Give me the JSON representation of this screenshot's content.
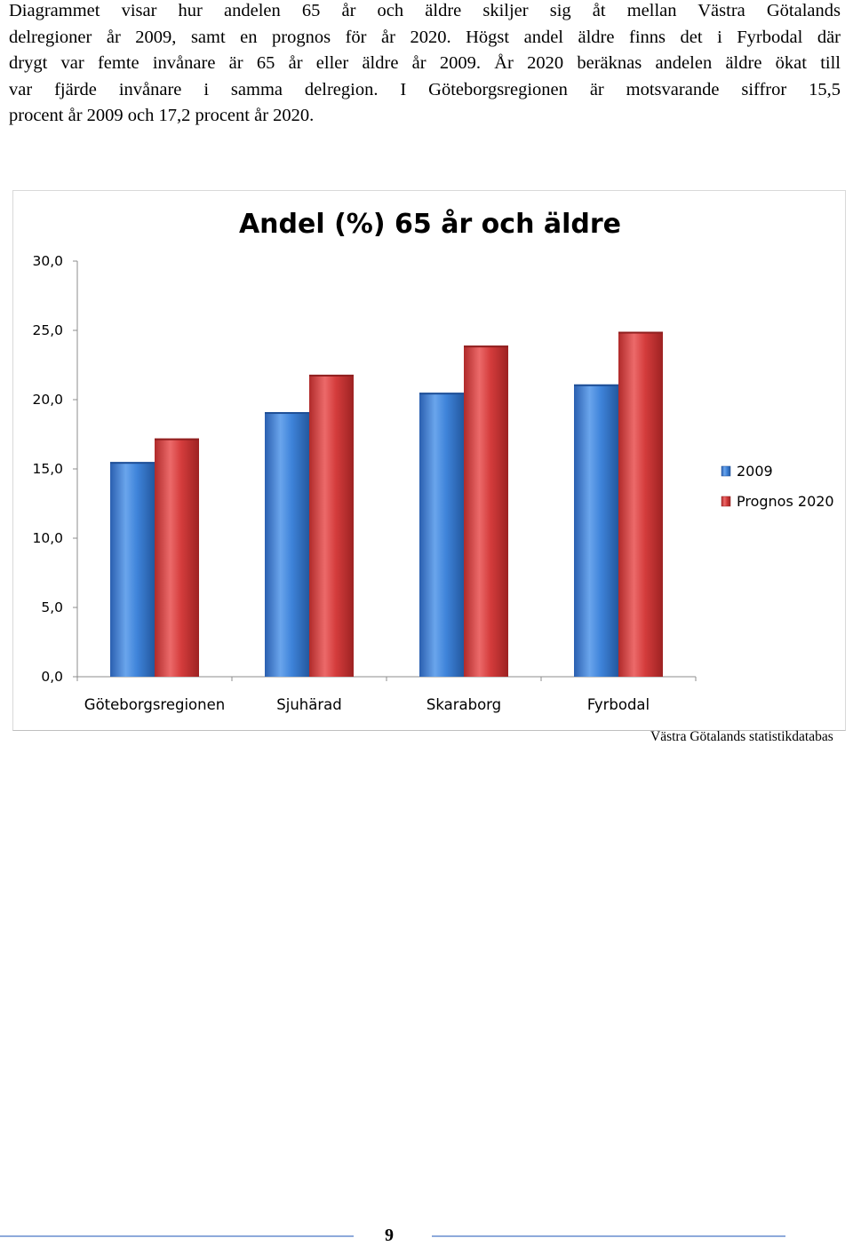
{
  "document": {
    "paragraph_lines": [
      "Diagrammet visar hur andelen 65 år och äldre skiljer sig åt mellan Västra Götalands",
      "delregioner år 2009, samt en prognos för år 2020. Högst andel äldre finns det i Fyrbodal där",
      "drygt var femte invånare är 65 år eller äldre år 2009. År 2020 beräknas andelen äldre ökat till",
      "var fjärde invånare i samma delregion. I Göteborgsregionen är motsvarande siffror 15,5",
      "procent år 2009 och 17,2 procent år 2020."
    ],
    "source": "Västra Götalands statistikdatabas",
    "page_number": "9"
  },
  "chart_data": {
    "type": "bar",
    "title": "Andel (%) 65 år och äldre",
    "categories": [
      "Göteborgsregionen",
      "Sjuhärad",
      "Skaraborg",
      "Fyrbodal"
    ],
    "series": [
      {
        "name": "2009",
        "values": [
          15.5,
          19.1,
          20.5,
          21.1
        ],
        "color": "#3a7fd5"
      },
      {
        "name": "Prognos 2020",
        "values": [
          17.2,
          21.8,
          23.9,
          24.9
        ],
        "color": "#d33b3b"
      }
    ],
    "ylim": [
      0,
      30
    ],
    "yticks": [
      "0,0",
      "5,0",
      "10,0",
      "15,0",
      "20,0",
      "25,0",
      "30,0"
    ],
    "ytick_values": [
      0,
      5,
      10,
      15,
      20,
      25,
      30
    ],
    "xlabel": "",
    "ylabel": "",
    "grid": false,
    "legend_position": "right"
  }
}
